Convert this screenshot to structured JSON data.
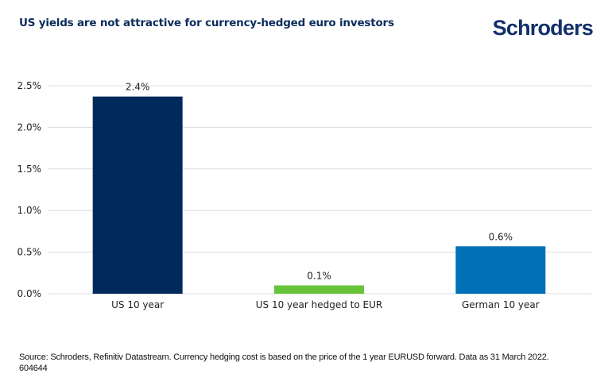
{
  "title": "US yields are not attractive for currency-hedged euro investors",
  "logo": "Schroders",
  "footer": {
    "source": "Source: Schroders, Refinitiv Datastream. Currency hedging cost is based on the price of the 1 year EURUSD forward. Data as 31 March 2022.",
    "code": "604644"
  },
  "chart_data": {
    "type": "bar",
    "title": "US yields are not attractive for currency-hedged euro investors",
    "xlabel": "",
    "ylabel": "",
    "categories": [
      "US 10 year",
      "US 10 year hedged to EUR",
      "German 10 year"
    ],
    "values": [
      2.37,
      0.1,
      0.57
    ],
    "data_labels": [
      "2.4%",
      "0.1%",
      "0.6%"
    ],
    "colors": [
      "#002a5c",
      "#66c33a",
      "#0071b9"
    ],
    "ylim": [
      0,
      2.5
    ],
    "yticks": [
      0,
      0.5,
      1.0,
      1.5,
      2.0,
      2.5
    ],
    "ytick_labels": [
      "0.0%",
      "0.5%",
      "1.0%",
      "1.5%",
      "2.0%",
      "2.5%"
    ],
    "grid": true,
    "legend": "none"
  }
}
